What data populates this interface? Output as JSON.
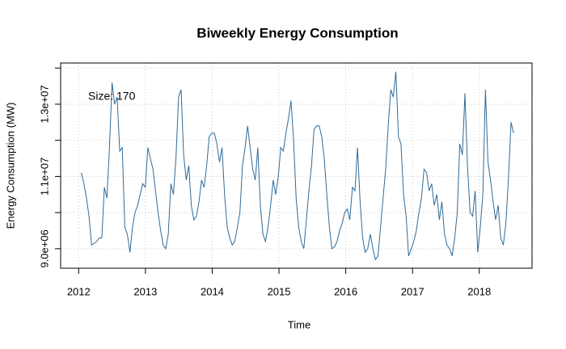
{
  "chart_data": {
    "type": "line",
    "title": "Biweekly Energy Consumption",
    "xlabel": "Time",
    "ylabel": "Energy Consumption (MW)",
    "annotation": "Size: 170",
    "annotation_color": "#f08878",
    "x": [
      2012.04,
      2012.078,
      2012.117,
      2012.155,
      2012.193,
      2012.232,
      2012.27,
      2012.308,
      2012.346,
      2012.385,
      2012.423,
      2012.461,
      2012.5,
      2012.538,
      2012.576,
      2012.615,
      2012.653,
      2012.691,
      2012.729,
      2012.768,
      2012.806,
      2012.844,
      2012.883,
      2012.921,
      2012.959,
      2012.998,
      2013.036,
      2013.074,
      2013.113,
      2013.151,
      2013.189,
      2013.228,
      2013.266,
      2013.304,
      2013.342,
      2013.381,
      2013.419,
      2013.457,
      2013.496,
      2013.534,
      2013.572,
      2013.611,
      2013.649,
      2013.687,
      2013.725,
      2013.764,
      2013.802,
      2013.84,
      2013.879,
      2013.917,
      2013.955,
      2013.994,
      2014.032,
      2014.07,
      2014.109,
      2014.147,
      2014.185,
      2014.224,
      2014.262,
      2014.3,
      2014.338,
      2014.377,
      2014.415,
      2014.453,
      2014.492,
      2014.53,
      2014.568,
      2014.607,
      2014.645,
      2014.683,
      2014.721,
      2014.76,
      2014.798,
      2014.836,
      2014.875,
      2014.913,
      2014.951,
      2014.99,
      2015.027,
      2015.065,
      2015.104,
      2015.142,
      2015.18,
      2015.219,
      2015.257,
      2015.295,
      2015.333,
      2015.372,
      2015.41,
      2015.448,
      2015.487,
      2015.525,
      2015.563,
      2015.602,
      2015.64,
      2015.678,
      2015.716,
      2015.755,
      2015.793,
      2015.831,
      2015.87,
      2015.908,
      2015.946,
      2015.985,
      2016.023,
      2016.061,
      2016.1,
      2016.138,
      2016.176,
      2016.215,
      2016.253,
      2016.291,
      2016.329,
      2016.368,
      2016.406,
      2016.444,
      2016.483,
      2016.521,
      2016.559,
      2016.598,
      2016.636,
      2016.674,
      2016.712,
      2016.751,
      2016.789,
      2016.827,
      2016.866,
      2016.904,
      2016.942,
      2016.981,
      2017.019,
      2017.057,
      2017.096,
      2017.134,
      2017.172,
      2017.211,
      2017.249,
      2017.287,
      2017.325,
      2017.364,
      2017.402,
      2017.44,
      2017.479,
      2017.517,
      2017.555,
      2017.594,
      2017.632,
      2017.67,
      2017.708,
      2017.747,
      2017.785,
      2017.823,
      2017.862,
      2017.9,
      2017.938,
      2017.977,
      2018.015,
      2018.053,
      2018.092,
      2018.13,
      2018.168,
      2018.207,
      2018.245,
      2018.283,
      2018.321,
      2018.36,
      2018.398,
      2018.436,
      2018.475,
      2018.513
    ],
    "series": [
      {
        "color": "#2f6b99",
        "values": [
          11100000.0,
          10800000.0,
          10400000.0,
          9900000.0,
          9100000.0,
          9150000.0,
          9200000.0,
          9300000.0,
          9300000.0,
          10700000.0,
          10400000.0,
          11800000.0,
          13600000.0,
          13000000.0,
          13200000.0,
          11700000.0,
          11800000.0,
          9600000.0,
          9400000.0,
          8900000.0,
          9600000.0,
          10000000.0,
          10200000.0,
          10500000.0,
          10800000.0,
          10700000.0,
          11800000.0,
          11500000.0,
          11200000.0,
          10600000.0,
          10000000.0,
          9500000.0,
          9100000.0,
          9000000.0,
          9400000.0,
          10800000.0,
          10500000.0,
          11500000.0,
          13200000.0,
          13400000.0,
          11600000.0,
          10900000.0,
          11300000.0,
          10200000.0,
          9800000.0,
          9900000.0,
          10300000.0,
          10900000.0,
          10700000.0,
          11300000.0,
          12100000.0,
          12200000.0,
          12200000.0,
          11900000.0,
          11400000.0,
          11800000.0,
          10500000.0,
          9600000.0,
          9300000.0,
          9100000.0,
          9200000.0,
          9600000.0,
          10000000.0,
          11300000.0,
          11800000.0,
          12400000.0,
          11800000.0,
          11200000.0,
          10900000.0,
          11800000.0,
          10200000.0,
          9400000.0,
          9200000.0,
          9600000.0,
          10200000.0,
          10900000.0,
          10500000.0,
          11000000.0,
          11800000.0,
          11700000.0,
          12200000.0,
          12600000.0,
          13100000.0,
          12000000.0,
          10400000.0,
          9600000.0,
          9200000.0,
          9000000.0,
          9800000.0,
          10600000.0,
          11300000.0,
          12300000.0,
          12400000.0,
          12400000.0,
          12100000.0,
          11500000.0,
          10500000.0,
          9600000.0,
          9000000.0,
          9050000.0,
          9200000.0,
          9500000.0,
          9700000.0,
          10000000.0,
          10100000.0,
          9800000.0,
          10700000.0,
          10600000.0,
          11800000.0,
          10300000.0,
          9300000.0,
          8900000.0,
          9000000.0,
          9400000.0,
          9000000.0,
          8700000.0,
          8800000.0,
          9600000.0,
          10400000.0,
          11200000.0,
          12400000.0,
          13400000.0,
          13200000.0,
          13900000.0,
          12100000.0,
          11900000.0,
          10500000.0,
          9900000.0,
          8800000.0,
          9000000.0,
          9200000.0,
          9500000.0,
          10000000.0,
          10400000.0,
          11200000.0,
          11100000.0,
          10600000.0,
          10800000.0,
          10200000.0,
          10500000.0,
          9800000.0,
          10300000.0,
          9400000.0,
          9100000.0,
          9000000.0,
          8800000.0,
          9300000.0,
          10000000.0,
          11900000.0,
          11600000.0,
          13300000.0,
          11300000.0,
          10000000.0,
          9900000.0,
          10600000.0,
          8900000.0,
          9600000.0,
          10500000.0,
          13400000.0,
          11400000.0,
          10900000.0,
          10300000.0,
          9800000.0,
          10200000.0,
          9300000.0,
          9100000.0,
          9700000.0,
          10900000.0,
          12500000.0,
          12200000.0
        ]
      }
    ],
    "xlim": [
      2011.73,
      2018.79
    ],
    "xticks": [
      2012,
      2013,
      2014,
      2015,
      2016,
      2017,
      2018
    ],
    "ylim": [
      8460000,
      14140000
    ],
    "yticks": [
      {
        "value": 9000000,
        "label": "9.0e+06"
      },
      {
        "value": 11000000,
        "label": "1.1e+07"
      },
      {
        "value": 13000000,
        "label": "1.3e+07"
      }
    ],
    "y_minor_ticks": [
      10000000,
      12000000,
      14000000
    ],
    "grid": true
  }
}
